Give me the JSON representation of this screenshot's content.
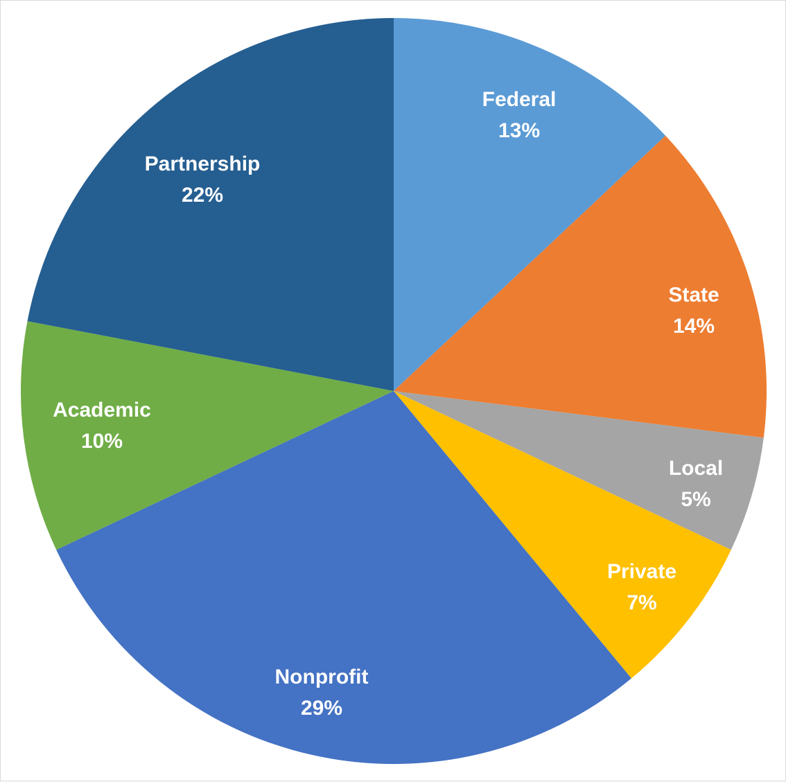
{
  "chart_data": {
    "type": "pie",
    "title": "",
    "start_angle_deg": 0,
    "direction": "clockwise",
    "slices": [
      {
        "label": "Federal",
        "value": 13,
        "display": "13%",
        "color": "#5b9bd5"
      },
      {
        "label": "State",
        "value": 14,
        "display": "14%",
        "color": "#ed7d31"
      },
      {
        "label": "Local",
        "value": 5,
        "display": "5%",
        "color": "#a5a5a5"
      },
      {
        "label": "Private",
        "value": 7,
        "display": "7%",
        "color": "#ffc000"
      },
      {
        "label": "Nonprofit",
        "value": 29,
        "display": "29%",
        "color": "#4472c4"
      },
      {
        "label": "Academic",
        "value": 10,
        "display": "10%",
        "color": "#70ad47"
      },
      {
        "label": "Partnership",
        "value": 22,
        "display": "22%",
        "color": "#255e91"
      }
    ],
    "legend": "none",
    "data_labels": "inside"
  }
}
